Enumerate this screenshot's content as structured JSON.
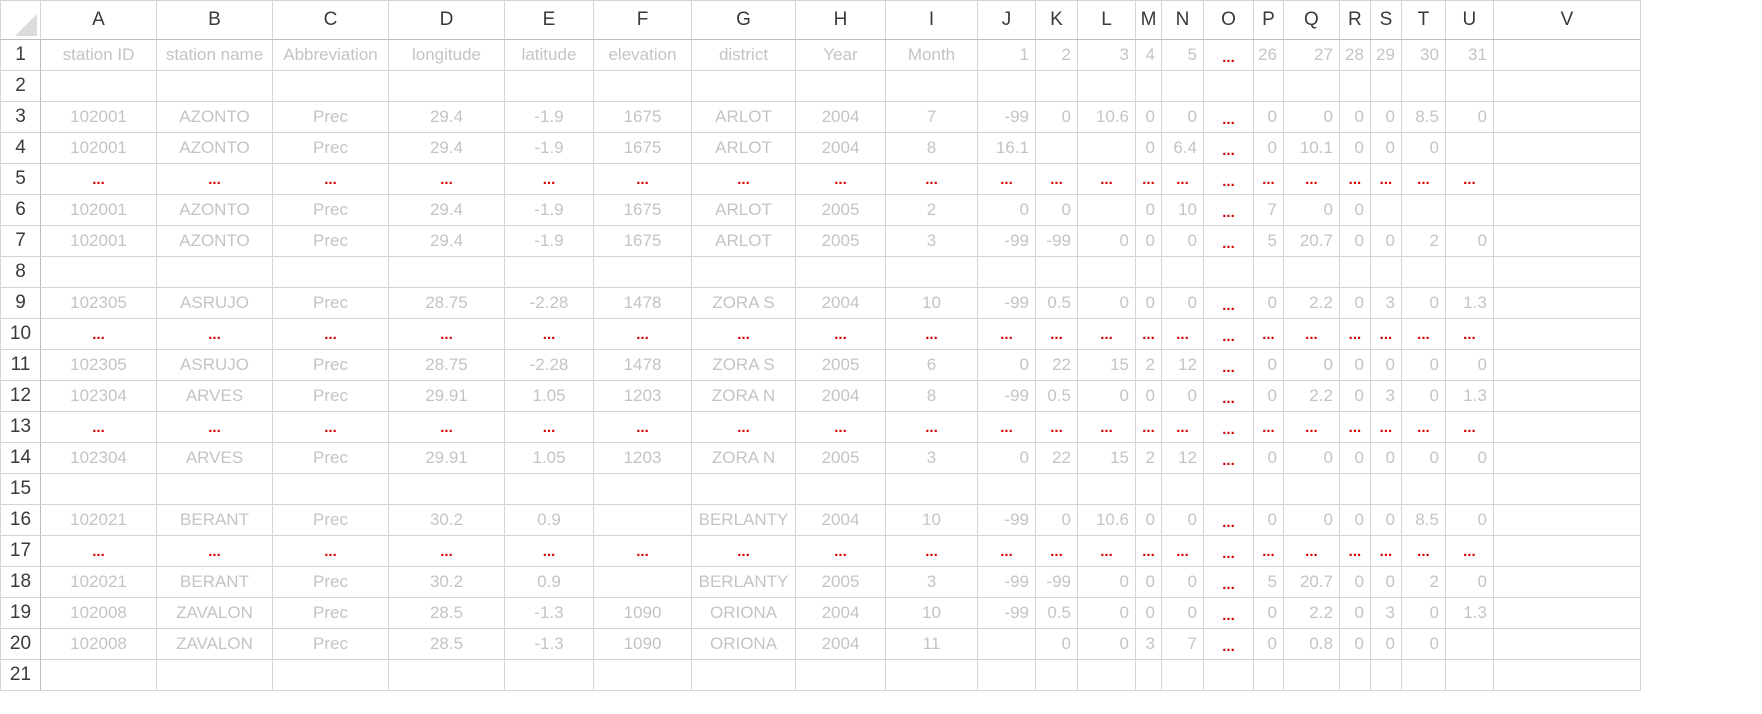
{
  "columns": [
    "A",
    "B",
    "C",
    "D",
    "E",
    "F",
    "G",
    "H",
    "I",
    "J",
    "K",
    "L",
    "M",
    "N",
    "O",
    "P",
    "Q",
    "R",
    "S",
    "T",
    "U",
    "V"
  ],
  "right_aligned": [
    "J",
    "K",
    "L",
    "M",
    "N",
    "P",
    "Q",
    "R",
    "S",
    "T",
    "U"
  ],
  "ellipsis": "...",
  "rows": [
    {
      "n": "1",
      "cells": [
        "station ID",
        "station name",
        "Abbreviation",
        "longitude",
        "latitude",
        "elevation",
        "district",
        "Year",
        "Month",
        "1",
        "2",
        "3",
        "4",
        "5",
        "...",
        "26",
        "27",
        "28",
        "29",
        "30",
        "31",
        ""
      ]
    },
    {
      "n": "2",
      "cells": [
        "",
        "",
        "",
        "",
        "",
        "",
        "",
        "",
        "",
        "",
        "",
        "",
        "",
        "",
        "",
        "",
        "",
        "",
        "",
        "",
        "",
        ""
      ]
    },
    {
      "n": "3",
      "cells": [
        "102001",
        "AZONTO",
        "Prec",
        "29.4",
        "-1.9",
        "1675",
        "ARLOT",
        "2004",
        "7",
        "-99",
        "0",
        "10.6",
        "0",
        "0",
        "...",
        "0",
        "0",
        "0",
        "0",
        "8.5",
        "0",
        ""
      ]
    },
    {
      "n": "4",
      "cells": [
        "102001",
        "AZONTO",
        "Prec",
        "29.4",
        "-1.9",
        "1675",
        "ARLOT",
        "2004",
        "8",
        "16.1",
        "",
        "",
        "0",
        "6.4",
        "...",
        "0",
        "10.1",
        "0",
        "0",
        "0",
        "",
        ""
      ]
    },
    {
      "n": "5",
      "cells": [
        "...",
        "...",
        "...",
        "...",
        "...",
        "...",
        "...",
        "...",
        "...",
        "...",
        "...",
        "...",
        "...",
        "...",
        "...",
        "...",
        "...",
        "...",
        "...",
        "...",
        "...",
        ""
      ]
    },
    {
      "n": "6",
      "cells": [
        "102001",
        "AZONTO",
        "Prec",
        "29.4",
        "-1.9",
        "1675",
        "ARLOT",
        "2005",
        "2",
        "0",
        "0",
        "",
        "0",
        "10",
        "...",
        "7",
        "0",
        "0",
        "",
        "",
        "",
        ""
      ]
    },
    {
      "n": "7",
      "cells": [
        "102001",
        "AZONTO",
        "Prec",
        "29.4",
        "-1.9",
        "1675",
        "ARLOT",
        "2005",
        "3",
        "-99",
        "-99",
        "0",
        "0",
        "0",
        "...",
        "5",
        "20.7",
        "0",
        "0",
        "2",
        "0",
        ""
      ]
    },
    {
      "n": "8",
      "cells": [
        "",
        "",
        "",
        "",
        "",
        "",
        "",
        "",
        "",
        "",
        "",
        "",
        "",
        "",
        "",
        "",
        "",
        "",
        "",
        "",
        "",
        ""
      ]
    },
    {
      "n": "9",
      "cells": [
        "102305",
        "ASRUJO",
        "Prec",
        "28.75",
        "-2.28",
        "1478",
        "ZORA S",
        "2004",
        "10",
        "-99",
        "0.5",
        "0",
        "0",
        "0",
        "...",
        "0",
        "2.2",
        "0",
        "3",
        "0",
        "1.3",
        ""
      ]
    },
    {
      "n": "10",
      "cells": [
        "...",
        "...",
        "...",
        "...",
        "...",
        "...",
        "...",
        "...",
        "...",
        "...",
        "...",
        "...",
        "...",
        "...",
        "...",
        "...",
        "...",
        "...",
        "...",
        "...",
        "...",
        ""
      ]
    },
    {
      "n": "11",
      "cells": [
        "102305",
        "ASRUJO",
        "Prec",
        "28.75",
        "-2.28",
        "1478",
        "ZORA S",
        "2005",
        "6",
        "0",
        "22",
        "15",
        "2",
        "12",
        "...",
        "0",
        "0",
        "0",
        "0",
        "0",
        "0",
        ""
      ]
    },
    {
      "n": "12",
      "cells": [
        "102304",
        "ARVES",
        "Prec",
        "29.91",
        "1.05",
        "1203",
        "ZORA N",
        "2004",
        "8",
        "-99",
        "0.5",
        "0",
        "0",
        "0",
        "...",
        "0",
        "2.2",
        "0",
        "3",
        "0",
        "1.3",
        ""
      ]
    },
    {
      "n": "13",
      "cells": [
        "...",
        "...",
        "...",
        "...",
        "...",
        "...",
        "...",
        "...",
        "...",
        "...",
        "...",
        "...",
        "...",
        "...",
        "...",
        "...",
        "...",
        "...",
        "...",
        "...",
        "...",
        ""
      ]
    },
    {
      "n": "14",
      "cells": [
        "102304",
        "ARVES",
        "Prec",
        "29.91",
        "1.05",
        "1203",
        "ZORA N",
        "2005",
        "3",
        "0",
        "22",
        "15",
        "2",
        "12",
        "...",
        "0",
        "0",
        "0",
        "0",
        "0",
        "0",
        ""
      ]
    },
    {
      "n": "15",
      "cells": [
        "",
        "",
        "",
        "",
        "",
        "",
        "",
        "",
        "",
        "",
        "",
        "",
        "",
        "",
        "",
        "",
        "",
        "",
        "",
        "",
        "",
        ""
      ]
    },
    {
      "n": "16",
      "cells": [
        "102021",
        "BERANT",
        "Prec",
        "30.2",
        "0.9",
        "",
        "BERLANTY",
        "2004",
        "10",
        "-99",
        "0",
        "10.6",
        "0",
        "0",
        "...",
        "0",
        "0",
        "0",
        "0",
        "8.5",
        "0",
        ""
      ]
    },
    {
      "n": "17",
      "cells": [
        "...",
        "...",
        "...",
        "...",
        "...",
        "...",
        "...",
        "...",
        "...",
        "...",
        "...",
        "...",
        "...",
        "...",
        "...",
        "...",
        "...",
        "...",
        "...",
        "...",
        "...",
        ""
      ]
    },
    {
      "n": "18",
      "cells": [
        "102021",
        "BERANT",
        "Prec",
        "30.2",
        "0.9",
        "",
        "BERLANTY",
        "2005",
        "3",
        "-99",
        "-99",
        "0",
        "0",
        "0",
        "...",
        "5",
        "20.7",
        "0",
        "0",
        "2",
        "0",
        ""
      ]
    },
    {
      "n": "19",
      "cells": [
        "102008",
        "ZAVALON",
        "Prec",
        "28.5",
        "-1.3",
        "1090",
        "ORIONA",
        "2004",
        "10",
        "-99",
        "0.5",
        "0",
        "0",
        "0",
        "...",
        "0",
        "2.2",
        "0",
        "3",
        "0",
        "1.3",
        ""
      ]
    },
    {
      "n": "20",
      "cells": [
        "102008",
        "ZAVALON",
        "Prec",
        "28.5",
        "-1.3",
        "1090",
        "ORIONA",
        "2004",
        "11",
        "",
        "0",
        "0",
        "3",
        "7",
        "...",
        "0",
        "0.8",
        "0",
        "0",
        "0",
        "",
        ""
      ]
    },
    {
      "n": "21",
      "cells": [
        "",
        "",
        "",
        "",
        "",
        "",
        "",
        "",
        "",
        "",
        "",
        "",
        "",
        "",
        "",
        "",
        "",
        "",
        "",
        "",
        "",
        ""
      ]
    }
  ]
}
